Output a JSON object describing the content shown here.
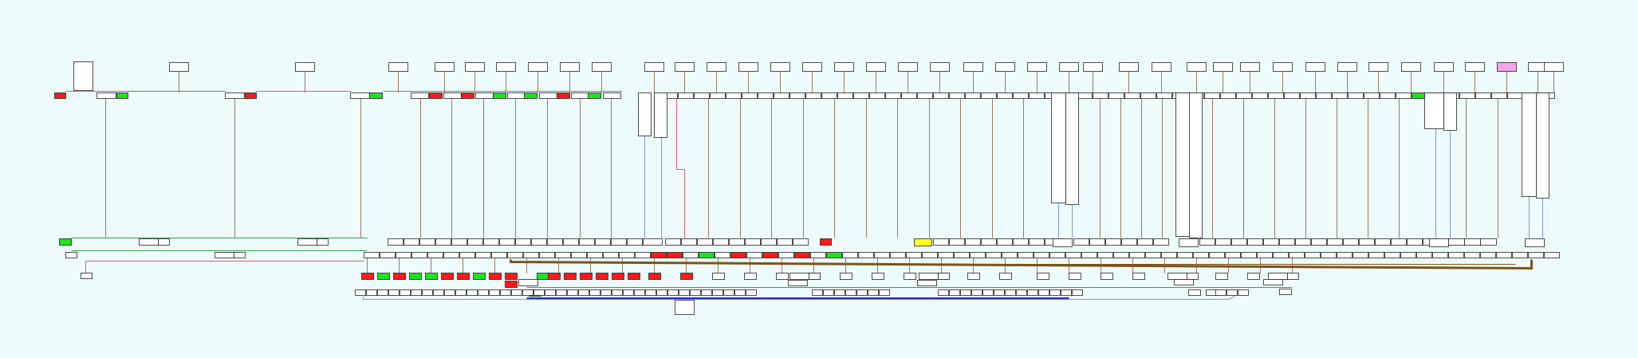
{
  "diagram": {
    "background": "#eefbfd",
    "colors": {
      "white": "#ffffff",
      "red": "#ff1a1a",
      "green": "#22e022",
      "yellow": "#ffff22",
      "pink": "#f4a6f4",
      "border": "#222222",
      "wire_brown": "#a07a5a",
      "wire_green": "#30a050",
      "wire_pink": "#e06060",
      "wire_blue": "#7a9ad8",
      "bus_brown": "#7a5418",
      "bus_blue": "#1a2ad8"
    },
    "color_counts": {
      "red": 41,
      "green": 17,
      "yellow": 1,
      "pink": 1
    },
    "text": []
  }
}
